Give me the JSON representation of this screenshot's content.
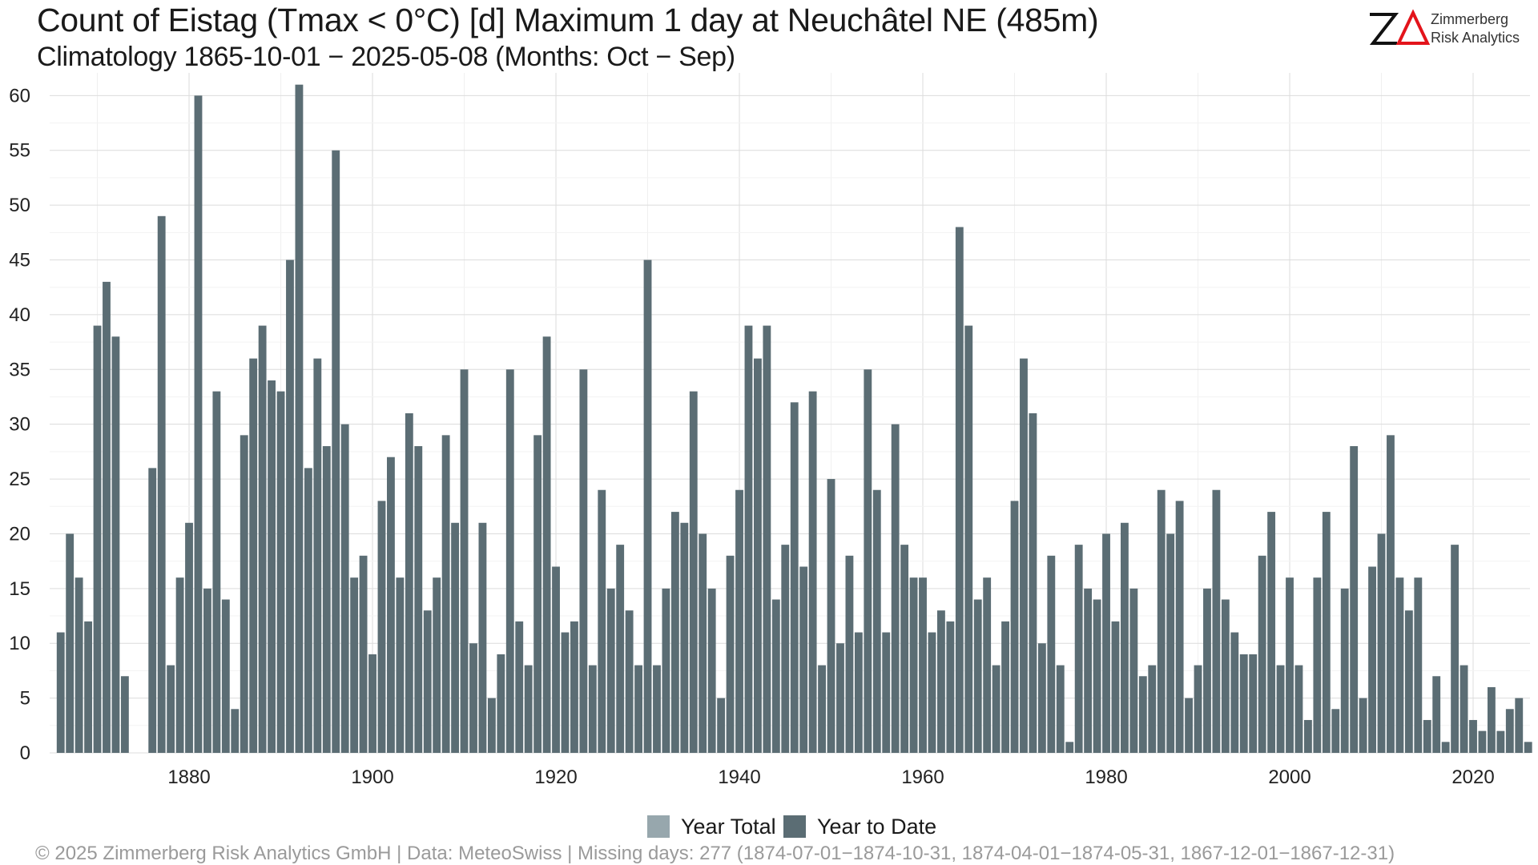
{
  "chart_data": {
    "type": "bar",
    "title": "Count of Eistag (Tmax < 0°C) [d] Maximum 1 day at Neuchâtel  NE (485m)",
    "subtitle": "Climatology 1865-10-01 − 2025-05-08 (Months: Oct − Sep)",
    "xlabel": "",
    "ylabel": "",
    "x_start": 1866,
    "xlim": [
      1864.8,
      2026.2
    ],
    "ylim": [
      0,
      62
    ],
    "x_ticks": [
      1880,
      1900,
      1920,
      1940,
      1960,
      1980,
      2000,
      2020
    ],
    "y_ticks": [
      0,
      5,
      10,
      15,
      20,
      25,
      30,
      35,
      40,
      45,
      50,
      55,
      60
    ],
    "grid": true,
    "legend_position": "bottom-center",
    "series": [
      {
        "name": "Year to Date",
        "color": "#5b6d74",
        "values": [
          11,
          20,
          16,
          12,
          39,
          43,
          38,
          7,
          null,
          null,
          26,
          49,
          8,
          16,
          21,
          60,
          15,
          33,
          14,
          4,
          29,
          36,
          39,
          34,
          33,
          45,
          61,
          26,
          36,
          28,
          55,
          30,
          16,
          18,
          9,
          23,
          27,
          16,
          31,
          28,
          13,
          16,
          29,
          21,
          35,
          10,
          21,
          5,
          9,
          35,
          12,
          8,
          29,
          38,
          17,
          11,
          12,
          35,
          8,
          24,
          15,
          19,
          13,
          8,
          45,
          8,
          15,
          22,
          21,
          33,
          20,
          15,
          5,
          18,
          24,
          39,
          36,
          39,
          14,
          19,
          32,
          17,
          33,
          8,
          25,
          10,
          18,
          11,
          35,
          24,
          11,
          30,
          19,
          16,
          16,
          11,
          13,
          12,
          48,
          39,
          14,
          16,
          8,
          12,
          23,
          36,
          31,
          10,
          18,
          8,
          1,
          19,
          15,
          14,
          20,
          12,
          21,
          15,
          7,
          8,
          24,
          20,
          23,
          5,
          8,
          15,
          24,
          14,
          11,
          9,
          9,
          18,
          22,
          8,
          16,
          8,
          3,
          16,
          22,
          4,
          15,
          28,
          5,
          17,
          20,
          29,
          16,
          13,
          16,
          3,
          7,
          1,
          19,
          8,
          3,
          2,
          6,
          2,
          4,
          5,
          1
        ]
      },
      {
        "name": "Year Total",
        "color": "#97a7ad",
        "values": []
      }
    ]
  },
  "footer": "©  2025 Zimmerberg Risk Analytics GmbH | Data: MeteoSwiss | Missing days: 277 (1874-07-01−1874-10-31, 1874-04-01−1874-05-31, 1867-12-01−1867-12-31)",
  "logo": {
    "letters": "ZΔ",
    "line1": "Zimmerberg",
    "line2": "Risk Analytics",
    "accent": "#e3141b"
  }
}
